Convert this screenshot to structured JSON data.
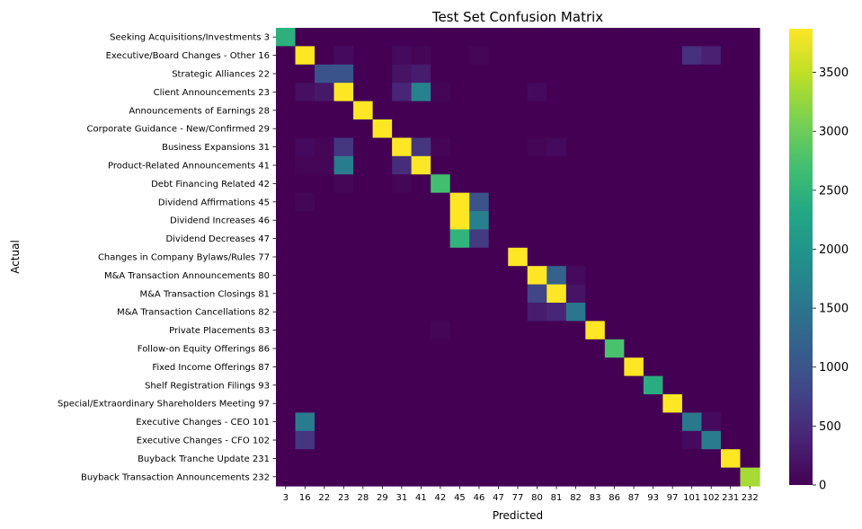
{
  "chart_data": {
    "type": "heatmap",
    "title": "Test Set Confusion Matrix",
    "xlabel": "Predicted",
    "ylabel": "Actual",
    "x_categories": [
      "3",
      "16",
      "22",
      "23",
      "28",
      "29",
      "31",
      "41",
      "42",
      "45",
      "46",
      "47",
      "77",
      "80",
      "81",
      "82",
      "83",
      "86",
      "87",
      "93",
      "97",
      "101",
      "102",
      "231",
      "232"
    ],
    "y_categories": [
      "Seeking Acquisitions/Investments  3",
      "Executive/Board Changes - Other  16",
      "Strategic Alliances  22",
      "Client Announcements  23",
      "Announcements of Earnings  28",
      "Corporate Guidance - New/Confirmed  29",
      "Business Expansions  31",
      "Product-Related Announcements  41",
      "Debt Financing Related  42",
      "Dividend Affirmations  45",
      "Dividend Increases  46",
      "Dividend Decreases  47",
      "Changes in Company Bylaws/Rules  77",
      "M&A Transaction Announcements  80",
      "M&A Transaction Closings  81",
      "M&A Transaction Cancellations  82",
      "Private Placements  83",
      "Follow-on Equity Offerings  86",
      "Fixed Income Offerings  87",
      "Shelf Registration Filings  93",
      "Special/Extraordinary Shareholders Meeting  97",
      "Executive Changes - CEO  101",
      "Executive Changes - CFO  102",
      "Buyback Tranche Update  231",
      "Buyback Transaction Announcements  232"
    ],
    "values": [
      [
        2450,
        0,
        0,
        0,
        0,
        0,
        0,
        0,
        0,
        0,
        0,
        0,
        0,
        0,
        0,
        0,
        0,
        0,
        0,
        0,
        0,
        0,
        0,
        0,
        0
      ],
      [
        0,
        3870,
        0,
        100,
        0,
        0,
        100,
        50,
        0,
        0,
        50,
        0,
        0,
        0,
        0,
        0,
        0,
        0,
        0,
        0,
        0,
        550,
        350,
        0,
        0
      ],
      [
        0,
        0,
        1000,
        1000,
        0,
        0,
        200,
        300,
        0,
        0,
        0,
        0,
        0,
        0,
        0,
        0,
        0,
        0,
        0,
        0,
        0,
        0,
        0,
        0,
        0
      ],
      [
        0,
        150,
        250,
        3870,
        0,
        0,
        400,
        1700,
        50,
        0,
        0,
        0,
        0,
        100,
        0,
        0,
        0,
        0,
        0,
        0,
        0,
        0,
        0,
        0,
        0
      ],
      [
        0,
        0,
        0,
        0,
        3870,
        0,
        0,
        0,
        0,
        0,
        0,
        0,
        0,
        0,
        0,
        0,
        0,
        0,
        0,
        0,
        0,
        0,
        0,
        0,
        0
      ],
      [
        0,
        0,
        0,
        0,
        0,
        3870,
        0,
        0,
        0,
        0,
        0,
        0,
        0,
        0,
        0,
        0,
        0,
        0,
        0,
        0,
        0,
        0,
        0,
        0,
        0
      ],
      [
        0,
        100,
        50,
        600,
        0,
        0,
        3870,
        600,
        50,
        0,
        0,
        0,
        0,
        50,
        100,
        0,
        0,
        0,
        0,
        0,
        0,
        0,
        0,
        0,
        0
      ],
      [
        0,
        50,
        50,
        1600,
        0,
        0,
        500,
        3870,
        0,
        0,
        0,
        0,
        0,
        0,
        0,
        0,
        0,
        0,
        0,
        0,
        0,
        0,
        0,
        0,
        0
      ],
      [
        0,
        0,
        0,
        50,
        0,
        0,
        50,
        0,
        2700,
        0,
        0,
        0,
        0,
        0,
        0,
        0,
        0,
        0,
        0,
        0,
        0,
        0,
        0,
        0,
        0
      ],
      [
        0,
        50,
        0,
        0,
        0,
        0,
        0,
        0,
        0,
        3870,
        1000,
        0,
        0,
        0,
        0,
        0,
        0,
        0,
        0,
        0,
        0,
        0,
        0,
        0,
        0
      ],
      [
        0,
        0,
        0,
        0,
        0,
        0,
        0,
        0,
        0,
        3870,
        1650,
        0,
        0,
        0,
        0,
        0,
        0,
        0,
        0,
        0,
        0,
        0,
        0,
        0,
        0
      ],
      [
        0,
        0,
        0,
        0,
        0,
        0,
        0,
        0,
        0,
        2500,
        650,
        0,
        0,
        0,
        0,
        0,
        0,
        0,
        0,
        0,
        0,
        0,
        0,
        0,
        0
      ],
      [
        0,
        0,
        0,
        0,
        0,
        0,
        0,
        0,
        0,
        0,
        0,
        0,
        3870,
        0,
        0,
        0,
        0,
        0,
        0,
        0,
        0,
        0,
        0,
        0,
        0
      ],
      [
        0,
        0,
        0,
        0,
        0,
        0,
        0,
        0,
        0,
        0,
        0,
        0,
        0,
        3870,
        1200,
        100,
        0,
        0,
        0,
        0,
        0,
        0,
        0,
        0,
        0
      ],
      [
        0,
        0,
        0,
        0,
        0,
        0,
        0,
        0,
        0,
        0,
        0,
        0,
        0,
        800,
        3870,
        200,
        0,
        0,
        0,
        0,
        0,
        0,
        0,
        0,
        0
      ],
      [
        0,
        0,
        0,
        0,
        0,
        0,
        0,
        0,
        0,
        0,
        0,
        0,
        0,
        300,
        400,
        1500,
        0,
        0,
        0,
        0,
        0,
        0,
        0,
        0,
        0
      ],
      [
        0,
        0,
        0,
        0,
        0,
        0,
        0,
        0,
        50,
        0,
        0,
        0,
        0,
        0,
        0,
        0,
        3870,
        0,
        0,
        0,
        0,
        0,
        0,
        0,
        0
      ],
      [
        0,
        0,
        0,
        0,
        0,
        0,
        0,
        0,
        0,
        0,
        0,
        0,
        0,
        0,
        0,
        0,
        0,
        2750,
        0,
        0,
        0,
        0,
        0,
        0,
        0
      ],
      [
        0,
        0,
        0,
        0,
        0,
        0,
        0,
        0,
        0,
        0,
        0,
        0,
        0,
        0,
        0,
        0,
        0,
        0,
        3870,
        0,
        0,
        0,
        0,
        0,
        0
      ],
      [
        0,
        0,
        0,
        0,
        0,
        0,
        0,
        0,
        0,
        0,
        0,
        0,
        0,
        0,
        0,
        0,
        0,
        0,
        0,
        2400,
        0,
        0,
        0,
        0,
        0
      ],
      [
        0,
        0,
        0,
        0,
        0,
        0,
        0,
        0,
        0,
        0,
        0,
        0,
        0,
        0,
        0,
        0,
        0,
        0,
        0,
        0,
        3870,
        0,
        0,
        0,
        0
      ],
      [
        0,
        1600,
        0,
        0,
        0,
        0,
        0,
        0,
        0,
        0,
        0,
        0,
        0,
        0,
        0,
        0,
        0,
        0,
        0,
        0,
        0,
        1550,
        100,
        0,
        0
      ],
      [
        0,
        600,
        0,
        0,
        0,
        0,
        0,
        0,
        0,
        0,
        0,
        0,
        0,
        0,
        0,
        0,
        0,
        0,
        0,
        0,
        0,
        100,
        1600,
        0,
        0
      ],
      [
        0,
        0,
        0,
        0,
        0,
        0,
        0,
        0,
        0,
        0,
        0,
        0,
        0,
        0,
        0,
        0,
        0,
        0,
        0,
        0,
        0,
        0,
        0,
        3870,
        0
      ],
      [
        0,
        0,
        0,
        0,
        0,
        0,
        0,
        0,
        0,
        0,
        0,
        0,
        0,
        0,
        0,
        0,
        0,
        0,
        0,
        0,
        0,
        0,
        0,
        0,
        3350
      ]
    ],
    "vmin": 0,
    "vmax": 3870,
    "colormap": "viridis",
    "colorbar_ticks": [
      0,
      500,
      1000,
      1500,
      2000,
      2500,
      3000,
      3500
    ],
    "grid": false
  }
}
